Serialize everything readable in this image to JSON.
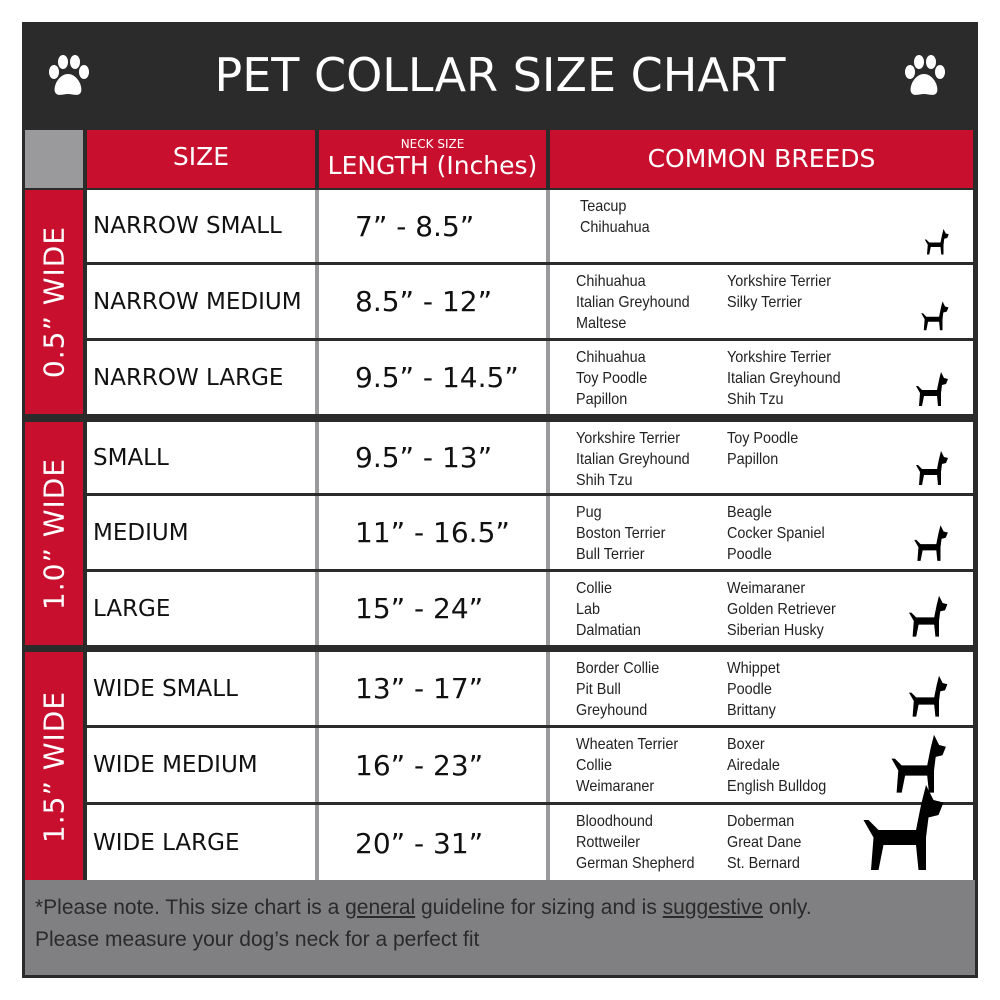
{
  "title": "PET COLLAR SIZE CHART",
  "icons": {
    "paw": "paw-print-icon",
    "dog": "dog-silhouette-icon"
  },
  "colors": {
    "accent": "#c8102e",
    "dark": "#2b2b2b",
    "gray": "#808083"
  },
  "header": {
    "size": "SIZE",
    "length_small": "NECK SIZE",
    "length": "LENGTH (Inches)",
    "breeds": "COMMON BREEDS"
  },
  "groups": [
    {
      "label": "0.5” WIDE",
      "rows": [
        {
          "size": "NARROW SMALL",
          "length": "7” - 8.5”",
          "breeds": [
            [
              "Teacup",
              "Chihuahua"
            ],
            []
          ]
        },
        {
          "size": "NARROW MEDIUM",
          "length": "8.5” - 12”",
          "breeds": [
            [
              "Chihuahua",
              "Italian Greyhound",
              "Maltese"
            ],
            [
              "Yorkshire Terrier",
              "Silky Terrier"
            ]
          ]
        },
        {
          "size": "NARROW LARGE",
          "length": "9.5” - 14.5”",
          "breeds": [
            [
              "Chihuahua",
              "Toy Poodle",
              "Papillon"
            ],
            [
              "Yorkshire Terrier",
              "Italian Greyhound",
              "Shih Tzu"
            ]
          ]
        }
      ]
    },
    {
      "label": "1.0” WIDE",
      "rows": [
        {
          "size": "SMALL",
          "length": "9.5” - 13”",
          "breeds": [
            [
              "Yorkshire Terrier",
              "Italian Greyhound",
              "Shih Tzu"
            ],
            [
              "Toy Poodle",
              "Papillon"
            ]
          ]
        },
        {
          "size": "MEDIUM",
          "length": "11” - 16.5”",
          "breeds": [
            [
              "Pug",
              "Boston Terrier",
              "Bull Terrier"
            ],
            [
              "Beagle",
              "Cocker Spaniel",
              "Poodle"
            ]
          ]
        },
        {
          "size": "LARGE",
          "length": "15” - 24”",
          "breeds": [
            [
              "Collie",
              "Lab",
              "Dalmatian"
            ],
            [
              "Weimaraner",
              "Golden Retriever",
              "Siberian Husky"
            ]
          ]
        }
      ]
    },
    {
      "label": "1.5” WIDE",
      "rows": [
        {
          "size": "WIDE SMALL",
          "length": "13” - 17”",
          "breeds": [
            [
              "Border Collie",
              "Pit Bull",
              "Greyhound"
            ],
            [
              "Whippet",
              "Poodle",
              "Brittany"
            ]
          ]
        },
        {
          "size": "WIDE MEDIUM",
          "length": "16” - 23”",
          "breeds": [
            [
              "Wheaten Terrier",
              "Collie",
              "Weimaraner"
            ],
            [
              "Boxer",
              "Airedale",
              "English Bulldog"
            ]
          ]
        },
        {
          "size": "WIDE LARGE",
          "length": "20” - 31”",
          "breeds": [
            [
              "Bloodhound",
              "Rottweiler",
              "German Shepherd"
            ],
            [
              "Doberman",
              "Great Dane",
              "St. Bernard"
            ]
          ]
        }
      ]
    }
  ],
  "footer": {
    "p1": "*Please note. This size chart is a ",
    "u1": "general",
    "p2": " guideline for sizing and is ",
    "u2": "suggestive",
    "p3": " only.",
    "line2": "Please measure your dog’s neck for a perfect fit"
  }
}
